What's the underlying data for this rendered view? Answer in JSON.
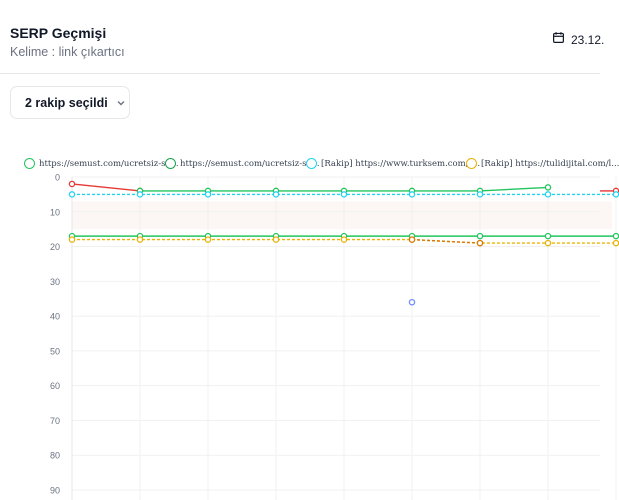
{
  "header": {
    "title": "SERP Geçmişi",
    "subtitle": "Kelime : link çıkartıcı",
    "date_label": "23.12.",
    "calendar_icon": "calendar-icon"
  },
  "competitor_select": {
    "label": "2 rakip seçildi",
    "icon": "chevron-down-icon"
  },
  "colors": {
    "red": "#e53935",
    "green": "#22c55e",
    "cyan": "#22d3ee",
    "yellow": "#eab308",
    "blue": "#6b8cff",
    "grid": "#f1f1f1",
    "axis_text": "#6b7280"
  },
  "chart_data": {
    "type": "line",
    "y_reversed": true,
    "ylim": [
      0,
      90
    ],
    "yticks": [
      0,
      10,
      20,
      30,
      40,
      50,
      60,
      70,
      80,
      90
    ],
    "xlabel": "",
    "ylabel": "",
    "legend_position": "top",
    "legend": [
      {
        "label": "https://semust.com/ucretsiz-se...",
        "color": "#22c55e"
      },
      {
        "label": "https://semust.com/ucretsiz-se...",
        "color": "#16a34a"
      },
      {
        "label": "[Rakip] https://www.turksem.com/t...",
        "color": "#22d3ee"
      },
      {
        "label": "[Rakip] https://tulidijital.com/l...",
        "color": "#eab308"
      }
    ],
    "series": [
      {
        "name": "https://semust.com/ucretsiz-se...",
        "color": "#e53935",
        "dashed": false,
        "values": [
          2,
          4,
          null,
          null,
          null,
          null,
          null,
          null,
          4
        ]
      },
      {
        "name": "https://semust.com/ucretsiz-se...",
        "color": "#22c55e",
        "dashed": false,
        "values": [
          null,
          4,
          4,
          4,
          4,
          4,
          4,
          3,
          null
        ]
      },
      {
        "name": "https://semust.com/ucretsiz-se...",
        "color": "#22c55e",
        "dashed": false,
        "values": [
          17,
          17,
          17,
          17,
          17,
          17,
          17,
          17,
          17
        ]
      },
      {
        "name": "[Rakip] https://www.turksem.com/t...",
        "color": "#22d3ee",
        "dashed": true,
        "values": [
          5,
          5,
          5,
          5,
          5,
          5,
          5,
          5,
          5
        ]
      },
      {
        "name": "[Rakip] https://tulidijital.com/l...",
        "color": "#eab308",
        "dashed": true,
        "values": [
          18,
          18,
          18,
          18,
          18,
          18,
          19,
          19,
          19
        ]
      },
      {
        "name": "",
        "color": "#d97706",
        "dashed": true,
        "values": [
          null,
          null,
          null,
          null,
          null,
          18,
          19,
          null,
          null
        ]
      }
    ],
    "extra_points": [
      {
        "index": 5,
        "value": 36,
        "color": "#6b8cff"
      }
    ]
  }
}
